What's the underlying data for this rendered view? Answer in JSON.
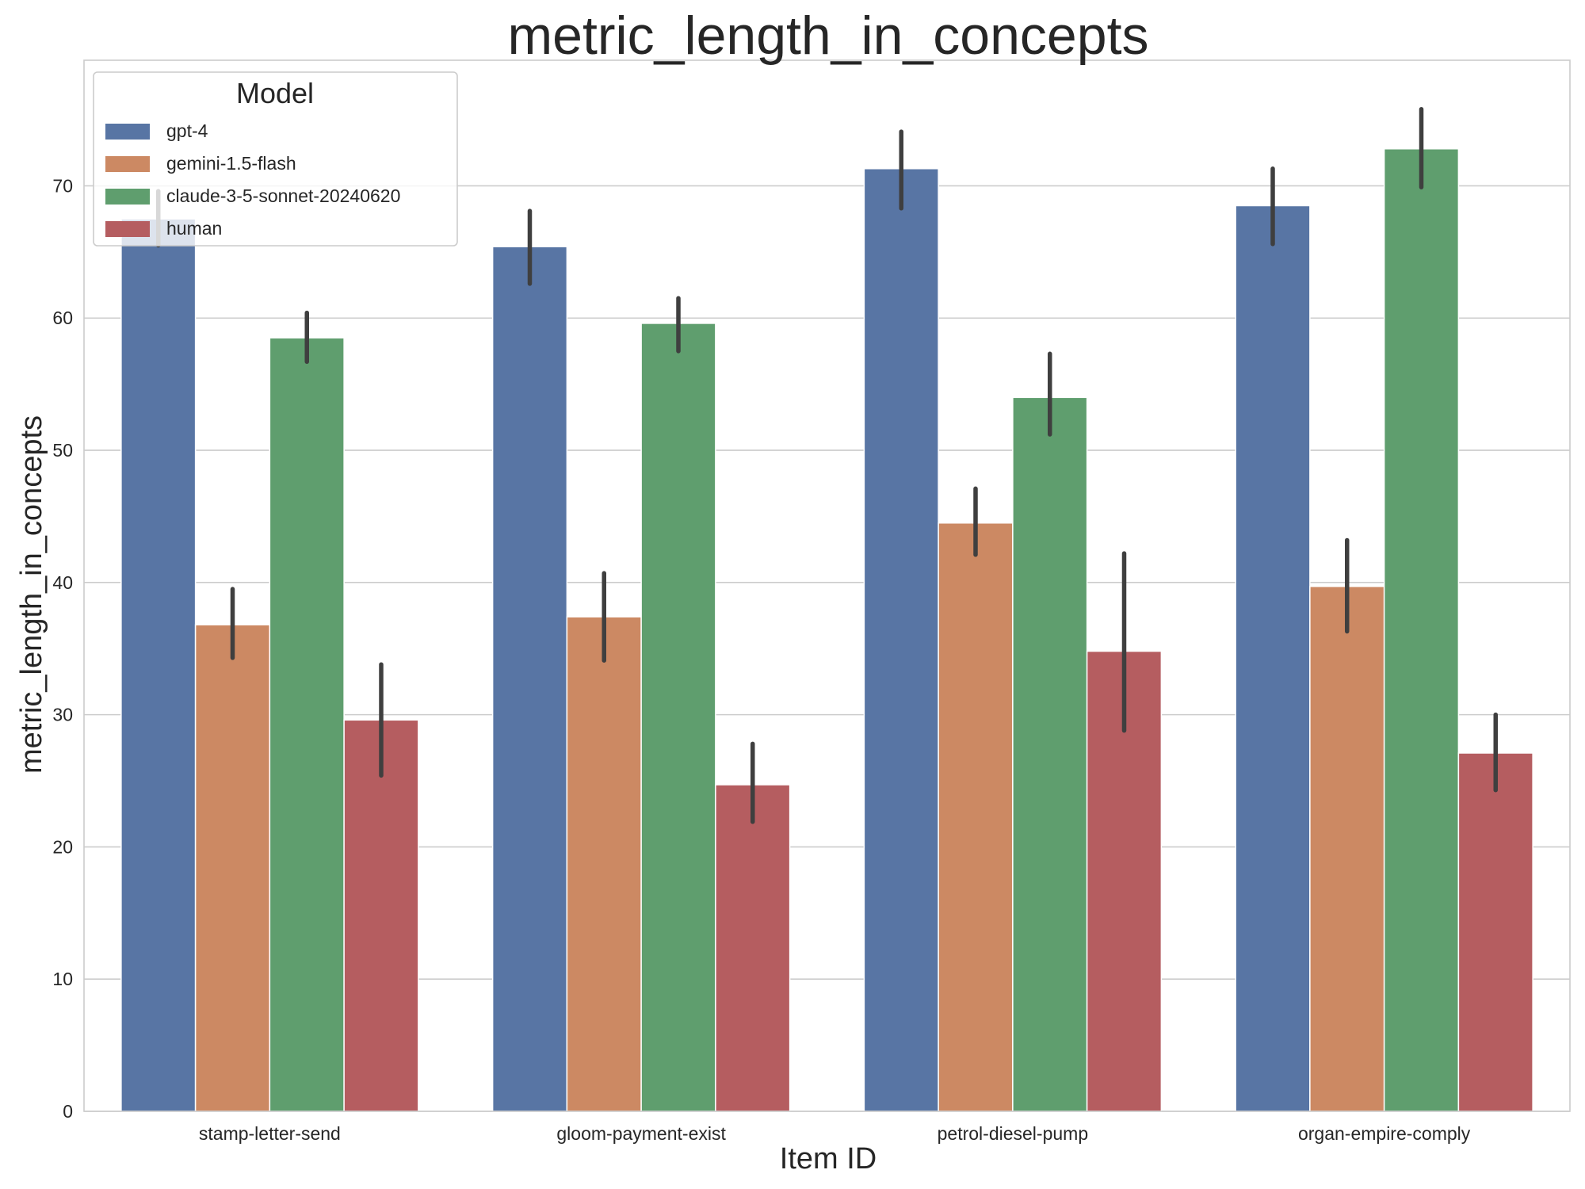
{
  "chart_data": {
    "type": "bar",
    "title": "metric_length_in_concepts",
    "xlabel": "Item ID",
    "ylabel": "metric_length_in_concepts",
    "categories": [
      "stamp-letter-send",
      "gloom-payment-exist",
      "petrol-diesel-pump",
      "organ-empire-comply"
    ],
    "ylim": [
      0,
      79.5
    ],
    "yticks": [
      0,
      10,
      20,
      30,
      40,
      50,
      60,
      70
    ],
    "grid": "horizontal",
    "legend": {
      "title": "Model",
      "placement": "top-left"
    },
    "series": [
      {
        "name": "gpt-4",
        "color": "#5875a4",
        "values": [
          67.5,
          65.4,
          71.3,
          68.5
        ],
        "ci_low": [
          65.5,
          62.6,
          68.3,
          65.6
        ],
        "ci_high": [
          69.6,
          68.1,
          74.1,
          71.3
        ]
      },
      {
        "name": "gemini-1.5-flash",
        "color": "#cc8963",
        "values": [
          36.8,
          37.4,
          44.5,
          39.7
        ],
        "ci_low": [
          34.3,
          34.1,
          42.1,
          36.3
        ],
        "ci_high": [
          39.5,
          40.7,
          47.1,
          43.2
        ]
      },
      {
        "name": "claude-3-5-sonnet-20240620",
        "color": "#5f9e6e",
        "values": [
          58.5,
          59.6,
          54.0,
          72.8
        ],
        "ci_low": [
          56.7,
          57.5,
          51.2,
          69.9
        ],
        "ci_high": [
          60.4,
          61.5,
          57.3,
          75.8
        ]
      },
      {
        "name": "human",
        "color": "#b55d60",
        "values": [
          29.6,
          24.7,
          34.8,
          27.1
        ],
        "ci_low": [
          25.4,
          21.9,
          28.8,
          24.3
        ],
        "ci_high": [
          33.8,
          27.8,
          42.2,
          30.0
        ]
      }
    ]
  }
}
